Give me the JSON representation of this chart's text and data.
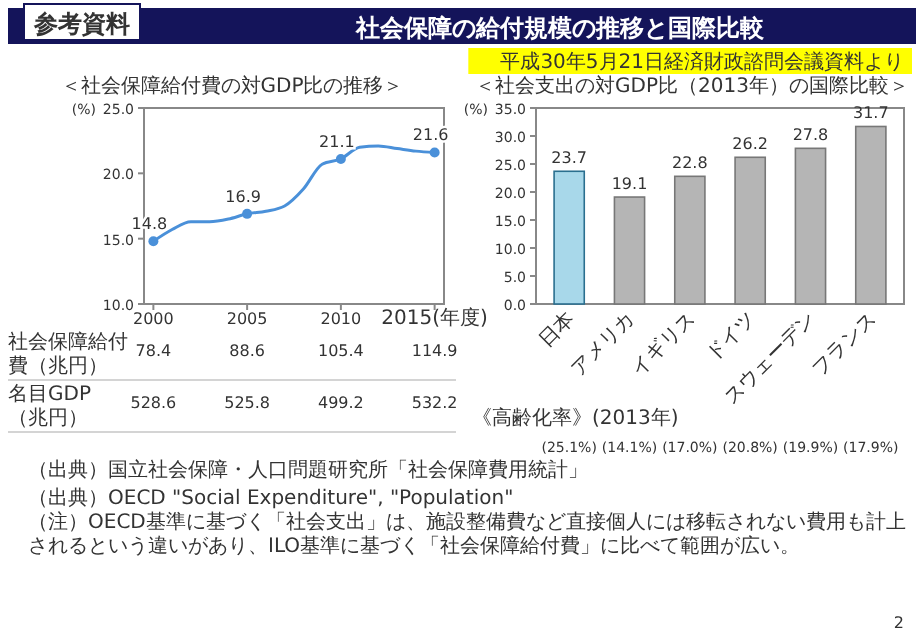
{
  "chart_data": [
    {
      "type": "other",
      "title": "社会保障の給付規模の推移と国際比較",
      "annotations": [
        "参考資料",
        "平成30年5月21日経済財政諮問会議資料より",
        "2"
      ]
    },
    {
      "type": "line",
      "title": "＜社会保障給付費の対GDP比の推移＞",
      "ylabel": "(%)",
      "series": [
        {
          "type": "line",
          "color": "#4a90d9",
          "x": [
            2000,
            2001,
            2002,
            2003,
            2004,
            2005,
            2006,
            2007,
            2008,
            2009,
            2010,
            2011,
            2012,
            2013,
            2014,
            2015
          ],
          "values": [
            14.8,
            15.7,
            16.3,
            16.3,
            16.5,
            16.9,
            17.1,
            17.5,
            18.8,
            20.7,
            21.1,
            22.0,
            22.1,
            21.9,
            21.7,
            21.6
          ]
        },
        {
          "type": "scatter",
          "color": "#4a90d9",
          "marker": "circle",
          "x": [
            2000,
            2005,
            2010,
            2015
          ],
          "values": [
            14.8,
            16.9,
            21.1,
            21.6
          ],
          "value_labels": [
            "14.8",
            "16.9",
            "21.1",
            "21.6"
          ]
        }
      ],
      "xlim": [
        1999.5,
        2015.5
      ],
      "xticks": [
        2000,
        2005,
        2010,
        {
          "value": 2015,
          "label": "2015(年度)"
        }
      ],
      "ylim": [
        10,
        25
      ],
      "yticks": [
        {
          "value": 10,
          "label": "10.0"
        },
        {
          "value": 15,
          "label": "15.0"
        },
        {
          "value": 20,
          "label": "20.0"
        },
        {
          "value": 25,
          "label": "25.0"
        }
      ],
      "annotations": [
        "社会保障給付費（兆円） 78.4 88.6 105.4 114.9",
        "名目GDP（兆円） 528.6 525.8 499.2 532.2",
        "（出典）国立社会保障・人口問題研究所「社会保障費用統計」"
      ]
    },
    {
      "type": "bar",
      "title": "＜社会支出の対GDP比（2013年）の国際比較＞",
      "ylabel": "(%)",
      "categories": [
        "日本",
        "アメリカ",
        "イギリス",
        "ドイツ",
        "スウェーデン",
        "フランス"
      ],
      "values": [
        23.7,
        19.1,
        22.8,
        26.2,
        27.8,
        31.7
      ],
      "colors": [
        "#a8d8ea",
        "#b5b5b5",
        "#b5b5b5",
        "#b5b5b5",
        "#b5b5b5",
        "#b5b5b5"
      ],
      "data_labels": true,
      "ylim": [
        0,
        35
      ],
      "yticks": [
        {
          "value": 0,
          "label": "0.0"
        },
        {
          "value": 5,
          "label": "5.0"
        },
        {
          "value": 10,
          "label": "10.0"
        },
        {
          "value": 15,
          "label": "15.0"
        },
        {
          "value": 20,
          "label": "20.0"
        },
        {
          "value": 25,
          "label": "25.0"
        },
        {
          "value": 30,
          "label": "30.0"
        },
        {
          "value": 35,
          "label": "35.0"
        }
      ],
      "annotations": [
        "《高齢化率》(2013年)",
        "(25.1%)",
        "(14.1%)",
        "(17.0%)",
        "(20.8%)",
        "(19.9%)",
        "(17.9%)",
        "（出典）OECD \"Social Expenditure\", \"Population\"",
        "（注）OECD基準に基づく「社会支出」は、施設整備費など直接個人には移転されない費用も計上されるという違いがあり、ILO基準に基づく「社会保障給付費」に比べて範囲が広い。"
      ]
    }
  ]
}
